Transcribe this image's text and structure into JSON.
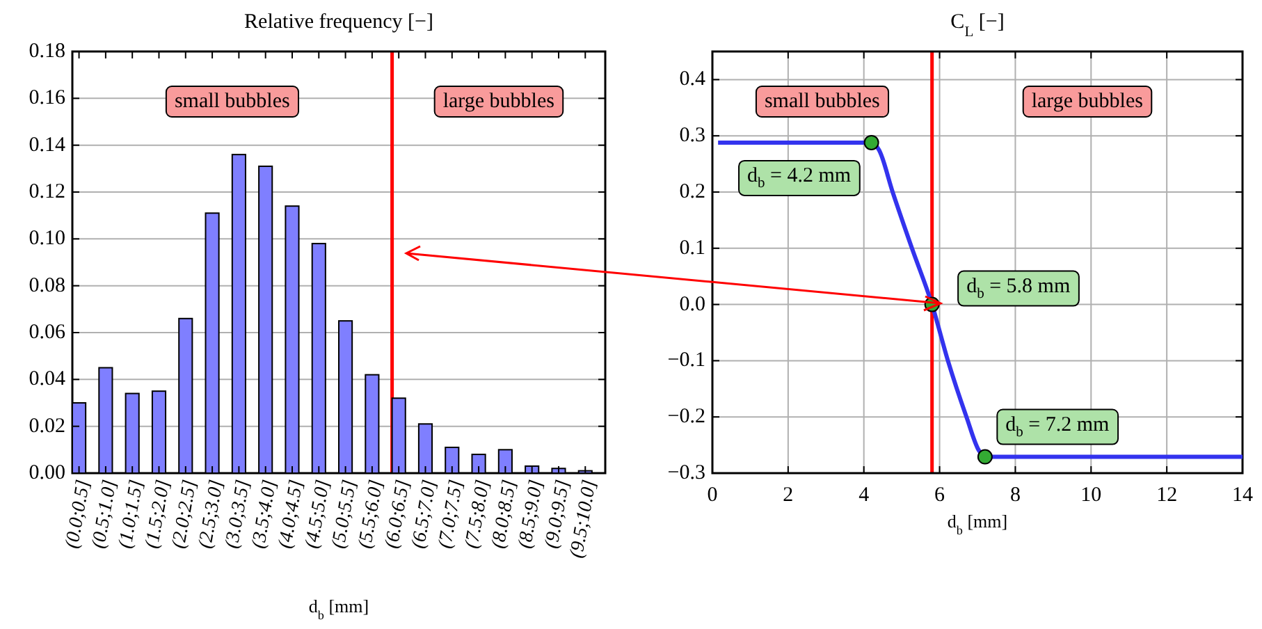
{
  "chart_data": [
    {
      "type": "bar",
      "title": "Relative frequency [−]",
      "xlabel": "d$_{b}$ [mm]",
      "categories": [
        "(0.0;0.5]",
        "(0.5;1.0]",
        "(1.0;1.5]",
        "(1.5;2.0]",
        "(2.0;2.5]",
        "(2.5;3.0]",
        "(3.0;3.5]",
        "(3.5;4.0]",
        "(4.0;4.5]",
        "(4.5;5.0]",
        "(5.0;5.5]",
        "(5.5;6.0]",
        "(6.0;6.5]",
        "(6.5;7.0]",
        "(7.0;7.5]",
        "(7.5;8.0]",
        "(8.0;8.5]",
        "(8.5;9.0]",
        "(9.0;9.5]",
        "(9.5;10.0]"
      ],
      "values": [
        0.03,
        0.045,
        0.034,
        0.035,
        0.066,
        0.111,
        0.136,
        0.131,
        0.114,
        0.098,
        0.065,
        0.042,
        0.032,
        0.021,
        0.011,
        0.008,
        0.01,
        0.003,
        0.002,
        0.001
      ],
      "color": "#7f7fff",
      "ylim": [
        0,
        0.18
      ],
      "yticks": [
        {
          "value": 0,
          "label": "0.00"
        },
        {
          "value": 0.02,
          "label": "0.02"
        },
        {
          "value": 0.04,
          "label": "0.04"
        },
        {
          "value": 0.06,
          "label": "0.06"
        },
        {
          "value": 0.08,
          "label": "0.08"
        },
        {
          "value": 0.1,
          "label": "0.10"
        },
        {
          "value": 0.12,
          "label": "0.12"
        },
        {
          "value": 0.14,
          "label": "0.14"
        },
        {
          "value": 0.16,
          "label": "0.16"
        },
        {
          "value": 0.18,
          "label": "0.18"
        }
      ],
      "grid": "y",
      "ref_lines": [
        {
          "axis": "x",
          "value": "(6.0;6.5]",
          "color": "#ff0000"
        }
      ],
      "annotations": [
        "small bubbles",
        "large bubbles"
      ]
    },
    {
      "type": "line",
      "title": "C$_{L}$ [−]",
      "xlabel": "d$_{b}$ [mm]",
      "series": [
        {
          "type": "line",
          "color": "#3333ee",
          "x": [
            0.15,
            4.2,
            4.4,
            4.76,
            5.27,
            5.8,
            6.22,
            6.71,
            7.04,
            7.2,
            14
          ],
          "values": [
            0.288,
            0.288,
            0.275,
            0.2,
            0.1,
            0,
            -0.1,
            -0.2,
            -0.26,
            -0.271,
            -0.271
          ]
        },
        {
          "type": "scatter",
          "marker": "circle",
          "color": "#33aa33",
          "x": [
            4.2,
            5.8,
            7.2
          ],
          "values": [
            0.288,
            0,
            -0.271
          ]
        }
      ],
      "xlim": [
        0,
        14
      ],
      "xticks": [
        0,
        2,
        4,
        6,
        8,
        10,
        12,
        14
      ],
      "ylim": [
        -0.3,
        0.45
      ],
      "yticks": [
        {
          "value": -0.3,
          "label": "−0.3"
        },
        {
          "value": -0.2,
          "label": "−0.2"
        },
        {
          "value": -0.1,
          "label": "−0.1"
        },
        {
          "value": 0,
          "label": "0.0"
        },
        {
          "value": 0.1,
          "label": "0.1"
        },
        {
          "value": 0.2,
          "label": "0.2"
        },
        {
          "value": 0.3,
          "label": "0.3"
        },
        {
          "value": 0.4,
          "label": "0.4"
        }
      ],
      "grid": true,
      "ref_lines": [
        {
          "axis": "x",
          "value": 5.8,
          "color": "#ff0000"
        }
      ],
      "annotations": [
        "small bubbles",
        "large bubbles",
        {
          "text": "d$_{b}$ = 4.2 mm",
          "x": 4.2,
          "y": 0.288
        },
        {
          "text": "d$_{b}$ = 5.8 mm",
          "x": 5.8,
          "y": 0
        },
        {
          "text": "d$_{b}$ = 7.2 mm",
          "x": 7.2,
          "y": -0.271
        }
      ]
    }
  ]
}
